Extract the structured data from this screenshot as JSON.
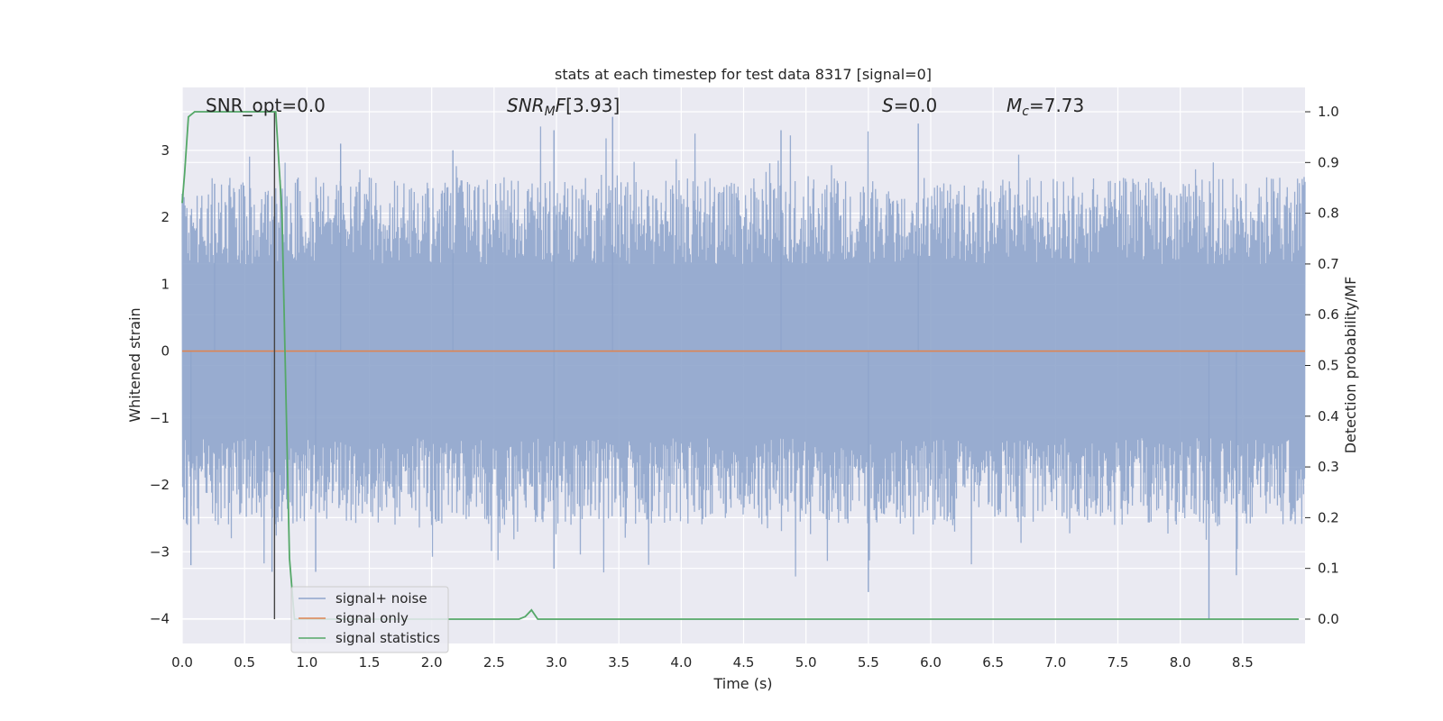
{
  "chart_data": {
    "type": "line",
    "title": "stats at each timestep for test data 8317 [signal=0]",
    "xlabel": "Time (s)",
    "ylabel": "Whitened strain",
    "y2label": "Detection probability/MF",
    "xlim": [
      0.0,
      9.0
    ],
    "ylim": [
      -4.37,
      3.94
    ],
    "y2lim": [
      -0.048,
      1.048
    ],
    "x_ticks": [
      "0.0",
      "0.5",
      "1.0",
      "1.5",
      "2.0",
      "2.5",
      "3.0",
      "3.5",
      "4.0",
      "4.5",
      "5.0",
      "5.5",
      "6.0",
      "6.5",
      "7.0",
      "7.5",
      "8.0",
      "8.5"
    ],
    "y_ticks": [
      "3",
      "2",
      "1",
      "0",
      "−1",
      "−2",
      "−3",
      "−4"
    ],
    "y2_ticks": [
      "1.0",
      "0.9",
      "0.8",
      "0.7",
      "0.6",
      "0.5",
      "0.4",
      "0.3",
      "0.2",
      "0.1",
      "0.0"
    ],
    "grid": true,
    "legend_position": "lower-left",
    "annotations": {
      "snr_opt": "SNR_opt=0.0",
      "snr_mf": "[3.93]",
      "s": "=0.0",
      "mc": "=7.73"
    },
    "series": [
      {
        "name": "signal+ noise",
        "axis": "left",
        "color": "#8fa5cc",
        "description_values": "dense whitened noise between about -3.3 and 3.5",
        "outliers": [
          {
            "x": 0.26,
            "y": 2.5
          },
          {
            "x": 1.27,
            "y": 3.1
          },
          {
            "x": 2.17,
            "y": 3.0
          },
          {
            "x": 2.98,
            "y": 3.3
          },
          {
            "x": 3.45,
            "y": 3.5
          },
          {
            "x": 4.8,
            "y": 3.3
          },
          {
            "x": 5.9,
            "y": 3.4
          },
          {
            "x": 0.07,
            "y": -3.2
          },
          {
            "x": 0.72,
            "y": -3.3
          },
          {
            "x": 1.07,
            "y": -3.3
          },
          {
            "x": 2.98,
            "y": -3.25
          },
          {
            "x": 5.5,
            "y": -3.6
          },
          {
            "x": 8.23,
            "y": -4.0
          },
          {
            "x": 8.45,
            "y": -3.35
          }
        ]
      },
      {
        "name": "signal only",
        "axis": "left",
        "color": "#dd8452",
        "x": [
          0.0,
          9.0
        ],
        "y": [
          0.0,
          0.0
        ]
      },
      {
        "name": "signal statistics",
        "axis": "right",
        "color": "#55a868",
        "x": [
          0.0,
          0.02,
          0.05,
          0.1,
          0.15,
          0.2,
          0.3,
          0.4,
          0.5,
          0.6,
          0.7,
          0.75,
          0.8,
          0.86,
          0.9,
          1.0,
          1.5,
          2.0,
          2.5,
          2.7,
          2.75,
          2.8,
          2.85,
          3.0,
          3.5,
          4.0,
          5.0,
          6.0,
          7.0,
          8.0,
          8.5,
          8.95
        ],
        "y": [
          0.82,
          0.88,
          0.99,
          1.0,
          1.0,
          1.0,
          1.0,
          1.0,
          1.0,
          1.0,
          1.0,
          1.0,
          0.8,
          0.12,
          0.0,
          0.0,
          0.0,
          0.0,
          0.0,
          0.0,
          0.005,
          0.018,
          0.0,
          0.0,
          0.0,
          0.0,
          0.0,
          0.0,
          0.0,
          0.0,
          0.0,
          0.0
        ]
      }
    ],
    "marker_line_x": 0.74
  }
}
